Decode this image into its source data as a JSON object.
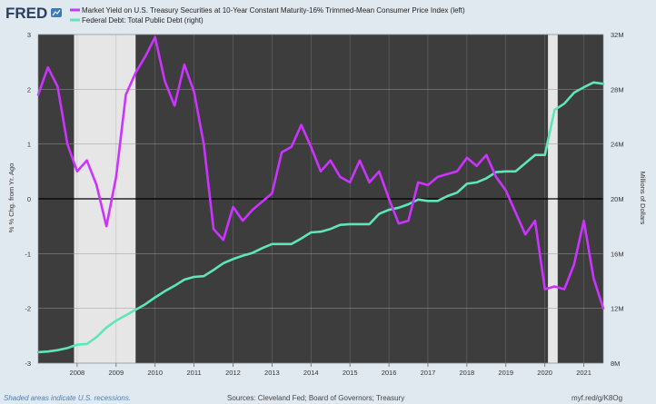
{
  "brand": {
    "logo_text": "FRED"
  },
  "chart_data": {
    "type": "line",
    "series": [
      {
        "name": "Market Yield on U.S. Treasury Securities at 10-Year Constant Maturity-16% Trimmed-Mean Consumer Price Index (left)",
        "axis": "left",
        "color": "#cc33ff",
        "x": [
          2007.0,
          2007.25,
          2007.5,
          2007.75,
          2008.0,
          2008.25,
          2008.5,
          2008.75,
          2009.0,
          2009.25,
          2009.5,
          2009.75,
          2010.0,
          2010.25,
          2010.5,
          2010.75,
          2011.0,
          2011.25,
          2011.5,
          2011.75,
          2012.0,
          2012.25,
          2012.5,
          2012.75,
          2013.0,
          2013.25,
          2013.5,
          2013.75,
          2014.0,
          2014.25,
          2014.5,
          2014.75,
          2015.0,
          2015.25,
          2015.5,
          2015.75,
          2016.0,
          2016.25,
          2016.5,
          2016.75,
          2017.0,
          2017.25,
          2017.5,
          2017.75,
          2018.0,
          2018.25,
          2018.5,
          2018.75,
          2019.0,
          2019.25,
          2019.5,
          2019.75,
          2020.0,
          2020.25,
          2020.5,
          2020.75,
          2021.0,
          2021.25,
          2021.5
        ],
        "y": [
          1.9,
          2.4,
          2.05,
          1.0,
          0.5,
          0.7,
          0.25,
          -0.5,
          0.4,
          1.9,
          2.3,
          2.6,
          2.95,
          2.15,
          1.7,
          2.45,
          1.95,
          1.0,
          -0.55,
          -0.75,
          -0.15,
          -0.4,
          -0.2,
          -0.05,
          0.1,
          0.85,
          0.95,
          1.35,
          0.95,
          0.5,
          0.7,
          0.4,
          0.3,
          0.7,
          0.3,
          0.5,
          0.0,
          -0.45,
          -0.4,
          0.3,
          0.25,
          0.4,
          0.45,
          0.5,
          0.75,
          0.6,
          0.8,
          0.4,
          0.15,
          -0.25,
          -0.65,
          -0.4,
          -1.65,
          -1.6,
          -1.65,
          -1.2,
          -0.4,
          -1.45,
          -2.0
        ]
      },
      {
        "name": "Federal Debt: Total Public Debt (right)",
        "axis": "right",
        "color": "#5fe6b8",
        "x": [
          2007.0,
          2007.25,
          2007.5,
          2007.75,
          2008.0,
          2008.25,
          2008.5,
          2008.75,
          2009.0,
          2009.25,
          2009.5,
          2009.75,
          2010.0,
          2010.25,
          2010.5,
          2010.75,
          2011.0,
          2011.25,
          2011.5,
          2011.75,
          2012.0,
          2012.25,
          2012.5,
          2012.75,
          2013.0,
          2013.25,
          2013.5,
          2013.75,
          2014.0,
          2014.25,
          2014.5,
          2014.75,
          2015.0,
          2015.25,
          2015.5,
          2015.75,
          2016.0,
          2016.25,
          2016.5,
          2016.75,
          2017.0,
          2017.25,
          2017.5,
          2017.75,
          2018.0,
          2018.25,
          2018.5,
          2018.75,
          2019.0,
          2019.25,
          2019.5,
          2019.75,
          2020.0,
          2020.25,
          2020.5,
          2020.75,
          2021.0,
          2021.25,
          2021.5
        ],
        "y": [
          8.8,
          8.85,
          8.95,
          9.1,
          9.35,
          9.4,
          9.9,
          10.6,
          11.1,
          11.5,
          11.9,
          12.3,
          12.8,
          13.25,
          13.65,
          14.1,
          14.3,
          14.35,
          14.8,
          15.3,
          15.6,
          15.85,
          16.05,
          16.4,
          16.7,
          16.7,
          16.7,
          17.1,
          17.55,
          17.6,
          17.8,
          18.1,
          18.15,
          18.15,
          18.15,
          18.9,
          19.2,
          19.35,
          19.6,
          19.95,
          19.85,
          19.85,
          20.2,
          20.45,
          21.1,
          21.2,
          21.5,
          21.95,
          22.0,
          22.0,
          22.6,
          23.2,
          23.2,
          26.5,
          26.95,
          27.75,
          28.15,
          28.5,
          28.4
        ]
      }
    ],
    "left_axis": {
      "title": "% % Chg. from Yr. Ago",
      "ylim": [
        -3,
        3
      ],
      "ticks": [
        "-3",
        "-2",
        "-1",
        "0",
        "1",
        "2",
        "3"
      ]
    },
    "right_axis": {
      "title": "Millions of Dollars",
      "ylim": [
        8,
        32
      ],
      "ticks": [
        "8M",
        "12M",
        "16M",
        "20M",
        "24M",
        "28M",
        "32M"
      ]
    },
    "x_axis": {
      "xlim": [
        2007.0,
        2021.5
      ],
      "ticks": [
        "2008",
        "2009",
        "2010",
        "2011",
        "2012",
        "2013",
        "2014",
        "2015",
        "2016",
        "2017",
        "2018",
        "2019",
        "2020",
        "2021"
      ]
    },
    "recessions": [
      [
        2007.92,
        2009.5
      ],
      [
        2020.08,
        2020.33
      ]
    ],
    "colors": {
      "plot_bg": "#3d3d3d",
      "recession": "#e6e6e6",
      "page_bg": "#e1e9f0",
      "zero_line": "#000000"
    }
  },
  "footer": {
    "recession_note": "Shaded areas indicate U.S. recessions.",
    "sources": "Sources: Cleveland Fed; Board of Governors; Treasury",
    "link": "myf.red/g/K8Og"
  }
}
